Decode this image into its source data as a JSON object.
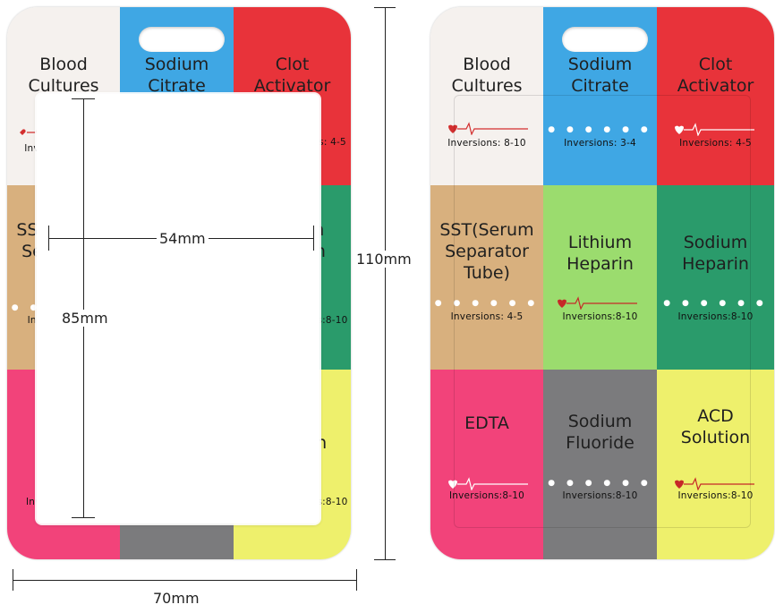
{
  "colors": {
    "blood_cultures": "#f5f1ee",
    "sodium_citrate": "#3fa7e4",
    "clot_activator": "#e8333a",
    "sst": "#d8b07e",
    "lithium_heparin": "#9bdc6e",
    "sodium_heparin": "#2a9b6b",
    "edta": "#f2437a",
    "sodium_fluoride": "#7b7b7d",
    "acd_solution": "#eef06c"
  },
  "tubes": [
    {
      "key": "blood_cultures",
      "label": "Blood\nCultures",
      "inversions": "Inversions: 8-10",
      "marker": "ekg"
    },
    {
      "key": "sodium_citrate",
      "label": "Sodium\nCitrate",
      "inversions": "Inversions: 3-4",
      "marker": "dots"
    },
    {
      "key": "clot_activator",
      "label": "Clot\nActivator",
      "inversions": "Inversions: 4-5",
      "marker": "ekg"
    },
    {
      "key": "sst",
      "label": "SST(Serum\nSeparator\nTube)",
      "inversions": "Inversions: 4-5",
      "marker": "dots"
    },
    {
      "key": "lithium_heparin",
      "label": "Lithium\nHeparin",
      "inversions": "Inversions:8-10",
      "marker": "ekg"
    },
    {
      "key": "sodium_heparin",
      "label": "Sodium\nHeparin",
      "inversions": "Inversions:8-10",
      "marker": "dots"
    },
    {
      "key": "edta",
      "label": "EDTA",
      "inversions": "Inversions:8-10",
      "marker": "ekg"
    },
    {
      "key": "sodium_fluoride",
      "label": "Sodium\nFluoride",
      "inversions": "Inversions:8-10",
      "marker": "dots"
    },
    {
      "key": "acd_solution",
      "label": "ACD\nSolution",
      "inversions": "Inversions:8-10",
      "marker": "ekg"
    }
  ],
  "dimensions": {
    "height_total": "110mm",
    "width_total": "70mm",
    "window_width": "54mm",
    "window_height": "85mm"
  }
}
